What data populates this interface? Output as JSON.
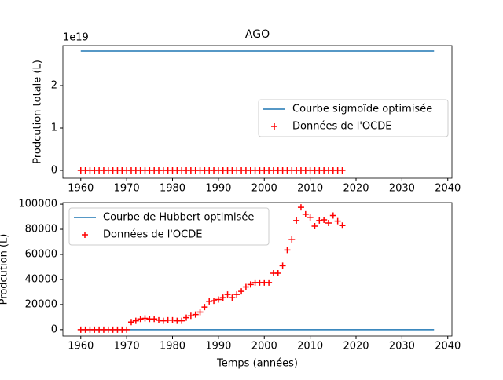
{
  "chart_data": [
    {
      "type": "line",
      "title": "AGO",
      "y_offset_label": "1e19",
      "ylabel": "Prodcution totale (L)",
      "xlim": [
        1956.1,
        2040.9
      ],
      "xticks": [
        1960,
        1970,
        1980,
        1990,
        2000,
        2010,
        2020,
        2030,
        2040
      ],
      "ylim": [
        -0.185,
        2.944
      ],
      "yticks": [
        0,
        1,
        2
      ],
      "legend": "center right",
      "series": [
        {
          "name": "Courbe sigmoïde optimisée",
          "type": "line",
          "color": "#1f77b4",
          "x": [
            1960,
            2037
          ],
          "values": [
            2.815,
            2.815
          ]
        },
        {
          "name": "Données de l'OCDE",
          "type": "scatter",
          "color": "#ff0000",
          "x": [
            1960,
            1961,
            1962,
            1963,
            1964,
            1965,
            1966,
            1967,
            1968,
            1969,
            1970,
            1971,
            1972,
            1973,
            1974,
            1975,
            1976,
            1977,
            1978,
            1979,
            1980,
            1981,
            1982,
            1983,
            1984,
            1985,
            1986,
            1987,
            1988,
            1989,
            1990,
            1991,
            1992,
            1993,
            1994,
            1995,
            1996,
            1997,
            1998,
            1999,
            2000,
            2001,
            2002,
            2003,
            2004,
            2005,
            2006,
            2007,
            2008,
            2009,
            2010,
            2011,
            2012,
            2013,
            2014,
            2015,
            2016,
            2017
          ],
          "values": [
            0,
            0,
            0,
            0,
            0,
            0,
            0,
            0,
            0,
            0,
            0,
            0,
            0,
            0,
            0,
            0,
            0,
            0,
            0,
            0,
            0,
            0,
            0,
            0,
            0,
            0,
            0,
            0,
            0,
            0,
            0,
            0,
            0,
            0,
            0,
            0,
            0,
            0,
            0,
            0,
            0,
            0,
            0,
            0,
            0,
            0,
            0,
            0,
            0,
            0,
            0,
            0,
            0,
            0,
            0,
            0,
            0,
            0
          ]
        }
      ]
    },
    {
      "type": "line",
      "xlabel": "Temps (années)",
      "ylabel": "Prodcution (L)",
      "xlim": [
        1956.1,
        2040.9
      ],
      "xticks": [
        1960,
        1970,
        1980,
        1990,
        2000,
        2010,
        2020,
        2030,
        2040
      ],
      "ylim": [
        -5100,
        101300
      ],
      "yticks": [
        0,
        20000,
        40000,
        60000,
        80000,
        100000
      ],
      "legend": "upper left",
      "series": [
        {
          "name": "Courbe de Hubbert optimisée",
          "type": "line",
          "color": "#1f77b4",
          "x": [
            1960,
            2037
          ],
          "values": [
            0,
            0
          ]
        },
        {
          "name": "Données de l'OCDE",
          "type": "scatter",
          "color": "#ff0000",
          "x": [
            1960,
            1961,
            1962,
            1963,
            1964,
            1965,
            1966,
            1967,
            1968,
            1969,
            1970,
            1971,
            1972,
            1973,
            1974,
            1975,
            1976,
            1977,
            1978,
            1979,
            1980,
            1981,
            1982,
            1983,
            1984,
            1985,
            1986,
            1987,
            1988,
            1989,
            1990,
            1991,
            1992,
            1993,
            1994,
            1995,
            1996,
            1997,
            1998,
            1999,
            2000,
            2001,
            2002,
            2003,
            2004,
            2005,
            2006,
            2007,
            2008,
            2009,
            2010,
            2011,
            2012,
            2013,
            2014,
            2015,
            2016,
            2017
          ],
          "values": [
            0,
            0,
            0,
            0,
            0,
            0,
            0,
            0,
            0,
            0,
            0,
            6000,
            7000,
            8500,
            9000,
            8500,
            8500,
            7500,
            7000,
            7500,
            7500,
            7000,
            7000,
            9500,
            11000,
            12000,
            14000,
            18000,
            22500,
            23000,
            24000,
            25500,
            28000,
            25500,
            28000,
            30500,
            34000,
            36000,
            37500,
            37500,
            37500,
            37500,
            45000,
            45000,
            51000,
            63500,
            72000,
            87000,
            97500,
            92000,
            89500,
            82500,
            87000,
            87500,
            85000,
            91000,
            86500,
            83000
          ]
        }
      ]
    }
  ]
}
